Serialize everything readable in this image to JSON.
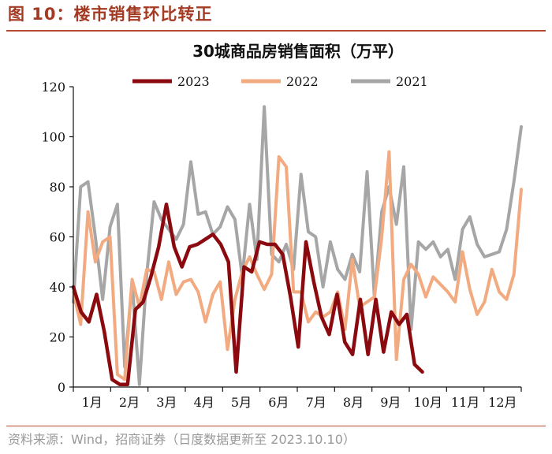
{
  "figure": {
    "heading": "图 10：楼市销售环比转正",
    "source": "资料来源：Wind，招商证券（日度数据更新至 2023.10.10）"
  },
  "colors": {
    "s2023": "#8b0a0f",
    "s2022": "#f2aa80",
    "s2021": "#a6a6a6",
    "accent": "#b5482f"
  },
  "chart_data": {
    "type": "line",
    "title": "30城商品房销售面积（万平）",
    "xlabel": "",
    "ylabel": "",
    "ylim": [
      0,
      120
    ],
    "yticks": [
      0,
      20,
      40,
      60,
      80,
      100,
      120
    ],
    "xticks": [
      "1月",
      "2月",
      "3月",
      "4月",
      "5月",
      "6月",
      "7月",
      "8月",
      "9月",
      "10月",
      "11月",
      "12月"
    ],
    "grid": false,
    "legend": "top",
    "x_unit": "week of year",
    "series": [
      {
        "name": "2023",
        "values": [
          40,
          30,
          26,
          37,
          22,
          3,
          1,
          1,
          31,
          34,
          44,
          56,
          73,
          56,
          48,
          56,
          57,
          59,
          61,
          57,
          50,
          6,
          48,
          46,
          58,
          57,
          57,
          53,
          36,
          16,
          58,
          42,
          28,
          21,
          37,
          18,
          13,
          35,
          13,
          35,
          14,
          30,
          25,
          29,
          9,
          6
        ]
      },
      {
        "name": "2022",
        "values": [
          38,
          25,
          70,
          50,
          58,
          60,
          5,
          3,
          43,
          32,
          47,
          46,
          35,
          50,
          37,
          42,
          43,
          38,
          26,
          37,
          42,
          15,
          35,
          46,
          52,
          45,
          39,
          45,
          92,
          88,
          38,
          38,
          26,
          30,
          28,
          30,
          38,
          23,
          51,
          32,
          34,
          36,
          60,
          94,
          11,
          43,
          49,
          45,
          36,
          44,
          41,
          38,
          34,
          54,
          39,
          29,
          34,
          47,
          38,
          35,
          45,
          79
        ]
      },
      {
        "name": "2021",
        "values": [
          34,
          80,
          82,
          60,
          35,
          64,
          73,
          8,
          42,
          1,
          45,
          74,
          67,
          63,
          59,
          65,
          90,
          69,
          70,
          61,
          64,
          72,
          67,
          44,
          73,
          51,
          112,
          53,
          50,
          57,
          47,
          85,
          62,
          60,
          40,
          58,
          47,
          43,
          53,
          46,
          86,
          36,
          70,
          80,
          65,
          88,
          23,
          58,
          55,
          58,
          52,
          55,
          43,
          63,
          68,
          57,
          52,
          53,
          54,
          63,
          82,
          104
        ]
      }
    ]
  }
}
